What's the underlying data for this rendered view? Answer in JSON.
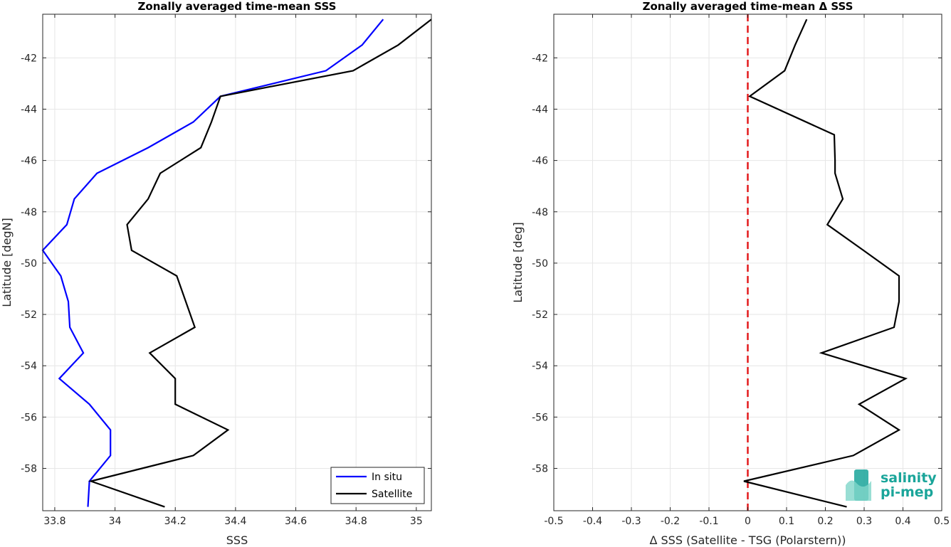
{
  "chart_data": [
    {
      "type": "line",
      "title": "Zonally averaged time-mean SSS",
      "xlabel": "SSS",
      "ylabel": "Latitude [degN]",
      "xlim": [
        33.76,
        35.05
      ],
      "ylim": [
        -59.65,
        -40.3
      ],
      "xticks": [
        33.8,
        34,
        34.2,
        34.4,
        34.6,
        34.8,
        35
      ],
      "xtick_labels": [
        "33.8",
        "34",
        "34.2",
        "34.4",
        "34.6",
        "34.8",
        "35"
      ],
      "yticks": [
        -42,
        -44,
        -46,
        -48,
        -50,
        -52,
        -54,
        -56,
        -58
      ],
      "ytick_labels": [
        "-42",
        "-44",
        "-46",
        "-48",
        "-50",
        "-52",
        "-54",
        "-56",
        "-58"
      ],
      "grid": true,
      "legend_position": "bottom-right",
      "series": [
        {
          "name": "In situ",
          "color": "#0000ff",
          "x": [
            34.89,
            34.82,
            34.7,
            34.35,
            34.26,
            34.11,
            33.94,
            33.865,
            33.84,
            33.76,
            33.82,
            33.845,
            33.85,
            33.895,
            33.815,
            33.915,
            33.985,
            33.985,
            33.915,
            33.91
          ],
          "y": [
            -40.5,
            -41.5,
            -42.5,
            -43.5,
            -44.5,
            -45.5,
            -46.5,
            -47.5,
            -48.5,
            -49.5,
            -50.5,
            -51.5,
            -52.5,
            -53.5,
            -54.5,
            -55.5,
            -56.5,
            -57.5,
            -58.5,
            -59.5
          ]
        },
        {
          "name": "Satellite",
          "color": "#000000",
          "x": [
            35.05,
            34.94,
            34.79,
            34.35,
            34.32,
            34.285,
            34.15,
            34.11,
            34.04,
            34.055,
            34.205,
            34.235,
            34.265,
            34.115,
            34.2,
            34.2,
            34.375,
            34.26,
            33.92,
            34.165
          ],
          "y": [
            -40.5,
            -41.5,
            -42.5,
            -43.5,
            -44.5,
            -45.5,
            -46.5,
            -47.5,
            -48.5,
            -49.5,
            -50.5,
            -51.5,
            -52.5,
            -53.5,
            -54.5,
            -55.5,
            -56.5,
            -57.5,
            -58.5,
            -59.5
          ]
        }
      ]
    },
    {
      "type": "line",
      "title": "Zonally averaged time-mean Δ SSS",
      "xlabel": "Δ SSS (Satellite - TSG (Polarstern))",
      "ylabel": "Latitude [deg]",
      "xlim": [
        -0.5,
        0.5
      ],
      "ylim": [
        -59.65,
        -40.3
      ],
      "xticks": [
        -0.5,
        -0.4,
        -0.3,
        -0.2,
        -0.1,
        0,
        0.1,
        0.2,
        0.3,
        0.4,
        0.5
      ],
      "xtick_labels": [
        "-0.5",
        "-0.4",
        "-0.3",
        "-0.2",
        "-0.1",
        "0",
        "0.1",
        "0.2",
        "0.3",
        "0.4",
        "0.5"
      ],
      "yticks": [
        -42,
        -44,
        -46,
        -48,
        -50,
        -52,
        -54,
        -56,
        -58
      ],
      "ytick_labels": [
        "-42",
        "-44",
        "-46",
        "-48",
        "-50",
        "-52",
        "-54",
        "-56",
        "-58"
      ],
      "grid": true,
      "reference_line": {
        "x": 0,
        "color": "#e31a1c",
        "style": "dashed"
      },
      "series": [
        {
          "color": "#000000",
          "x": [
            0.152,
            0.122,
            0.095,
            0.005,
            0.223,
            0.225,
            0.225,
            0.245,
            0.205,
            0.298,
            0.39,
            0.39,
            0.377,
            0.19,
            0.407,
            0.287,
            0.39,
            0.272,
            -0.01,
            0.255
          ],
          "y": [
            -40.5,
            -41.5,
            -42.5,
            -43.5,
            -45.0,
            -46.0,
            -46.5,
            -47.5,
            -48.5,
            -49.5,
            -50.5,
            -51.5,
            -52.5,
            -53.5,
            -54.5,
            -55.5,
            -56.5,
            -57.5,
            -58.5,
            -59.5
          ]
        }
      ]
    }
  ],
  "logo": {
    "line1": "salinity",
    "line2": "pi-mep",
    "color": "#1aa59a"
  }
}
